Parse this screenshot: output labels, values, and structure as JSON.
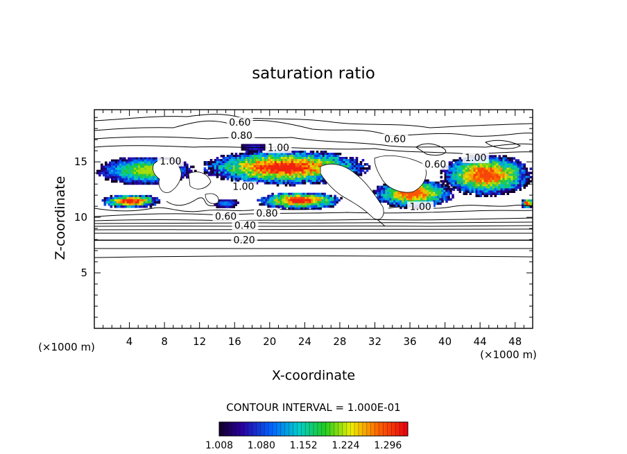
{
  "chart_data": {
    "type": "heatmap",
    "title": "saturation ratio",
    "xlabel": "X-coordinate",
    "ylabel": "Z-coordinate",
    "x_unit": "(×1000 m)",
    "z_unit": "(×1000 m)",
    "xlim": [
      0,
      50
    ],
    "ylim": [
      0,
      19.7
    ],
    "x_ticks": [
      "4",
      "8",
      "12",
      "16",
      "20",
      "24",
      "28",
      "32",
      "36",
      "40",
      "44",
      "48"
    ],
    "x_tick_values": [
      4,
      8,
      12,
      16,
      20,
      24,
      28,
      32,
      36,
      40,
      44,
      48
    ],
    "y_ticks": [
      "5",
      "10",
      "15"
    ],
    "y_tick_values": [
      5,
      10,
      15
    ],
    "contour_interval_text": "CONTOUR INTERVAL = 1.000E-01",
    "colorbar": {
      "min": 1.008,
      "max": 1.33,
      "tick_labels": [
        "1.008",
        "1.080",
        "1.152",
        "1.224",
        "1.296"
      ],
      "tick_values": [
        1.008,
        1.08,
        1.152,
        1.224,
        1.296
      ]
    },
    "contour_labels": [
      {
        "text": "0.60",
        "x": 16.6,
        "z": 18.4
      },
      {
        "text": "0.80",
        "x": 16.8,
        "z": 17.2
      },
      {
        "text": "0.60",
        "x": 34.3,
        "z": 16.9
      },
      {
        "text": "1.00",
        "x": 21.0,
        "z": 16.1
      },
      {
        "text": "1.00",
        "x": 8.7,
        "z": 14.9
      },
      {
        "text": "0.60",
        "x": 38.9,
        "z": 14.6
      },
      {
        "text": "1.00",
        "x": 43.5,
        "z": 15.2
      },
      {
        "text": "1.00",
        "x": 17.0,
        "z": 12.6
      },
      {
        "text": "1.00",
        "x": 37.2,
        "z": 10.8
      },
      {
        "text": "0.80",
        "x": 19.7,
        "z": 10.2
      },
      {
        "text": "0.60",
        "x": 15.0,
        "z": 9.9
      },
      {
        "text": "0.40",
        "x": 17.2,
        "z": 9.1
      },
      {
        "text": "0.20",
        "x": 17.1,
        "z": 7.8
      }
    ],
    "cloud_regions": [
      {
        "x": [
          0.0,
          11.4
        ],
        "z": [
          13.0,
          15.6
        ],
        "peak": 1.2
      },
      {
        "x": [
          0.6,
          7.4
        ],
        "z": [
          10.9,
          12.2
        ],
        "peak": 1.31
      },
      {
        "x": [
          12.0,
          31.4
        ],
        "z": [
          13.0,
          16.2
        ],
        "peak": 1.31
      },
      {
        "x": [
          16.5,
          19.6
        ],
        "z": [
          16.0,
          16.8
        ],
        "peak": 1.06
      },
      {
        "x": [
          18.3,
          28.3
        ],
        "z": [
          10.8,
          12.4
        ],
        "peak": 1.31
      },
      {
        "x": [
          13.4,
          16.4
        ],
        "z": [
          10.9,
          11.8
        ],
        "peak": 1.1
      },
      {
        "x": [
          31.5,
          41.0
        ],
        "z": [
          10.9,
          13.6
        ],
        "peak": 1.28
      },
      {
        "x": [
          39.2,
          50.0
        ],
        "z": [
          12.0,
          15.8
        ],
        "peak": 1.29
      },
      {
        "x": [
          48.5,
          50.0
        ],
        "z": [
          10.9,
          11.8
        ],
        "peak": 1.31
      }
    ]
  }
}
